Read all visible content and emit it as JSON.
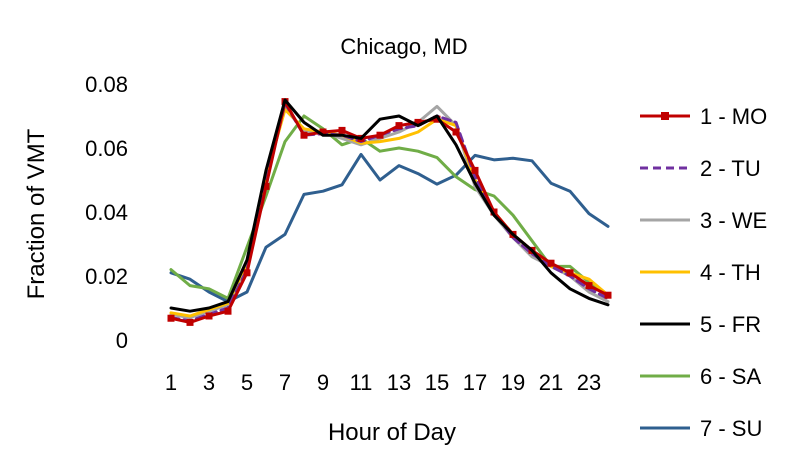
{
  "chart_data": {
    "type": "line",
    "title": "Chicago, MD",
    "xlabel": "Hour of Day",
    "ylabel": "Fraction of VMT",
    "x": [
      1,
      2,
      3,
      4,
      5,
      6,
      7,
      8,
      9,
      10,
      11,
      12,
      13,
      14,
      15,
      16,
      17,
      18,
      19,
      20,
      21,
      22,
      23,
      24
    ],
    "x_tick_labels": [
      "1",
      "3",
      "5",
      "7",
      "9",
      "11",
      "13",
      "15",
      "17",
      "19",
      "21",
      "23"
    ],
    "x_tick_values": [
      1,
      3,
      5,
      7,
      9,
      11,
      13,
      15,
      17,
      19,
      21,
      23
    ],
    "ylim": [
      0,
      0.08
    ],
    "y_ticks": [
      0,
      0.02,
      0.04,
      0.06,
      0.08
    ],
    "y_tick_labels": [
      "0",
      "0.02",
      "0.04",
      "0.06",
      "0.08"
    ],
    "grid": false,
    "legend_position": "right",
    "series": [
      {
        "name": "1 - MO",
        "color": "#c00000",
        "dash": "",
        "marker": "square",
        "values": [
          0.0068,
          0.0055,
          0.0075,
          0.009,
          0.021,
          0.048,
          0.0745,
          0.064,
          0.065,
          0.0655,
          0.063,
          0.064,
          0.067,
          0.068,
          0.069,
          0.065,
          0.053,
          0.04,
          0.033,
          0.028,
          0.024,
          0.021,
          0.017,
          0.014
        ]
      },
      {
        "name": "2 - TU",
        "color": "#7030a0",
        "dash": "8,5",
        "marker": "",
        "values": [
          0.007,
          0.006,
          0.008,
          0.01,
          0.022,
          0.049,
          0.074,
          0.064,
          0.0645,
          0.064,
          0.062,
          0.064,
          0.066,
          0.067,
          0.07,
          0.068,
          0.051,
          0.04,
          0.032,
          0.027,
          0.023,
          0.02,
          0.016,
          0.013
        ]
      },
      {
        "name": "3 - WE",
        "color": "#a5a5a5",
        "dash": "",
        "marker": "",
        "values": [
          0.008,
          0.007,
          0.009,
          0.011,
          0.023,
          0.05,
          0.073,
          0.065,
          0.065,
          0.063,
          0.061,
          0.063,
          0.065,
          0.068,
          0.073,
          0.067,
          0.048,
          0.039,
          0.032,
          0.026,
          0.023,
          0.02,
          0.015,
          0.012
        ]
      },
      {
        "name": "4 - TH",
        "color": "#ffc000",
        "dash": "",
        "marker": "",
        "values": [
          0.0085,
          0.0075,
          0.0095,
          0.0115,
          0.024,
          0.051,
          0.072,
          0.066,
          0.065,
          0.064,
          0.0615,
          0.062,
          0.063,
          0.065,
          0.069,
          0.067,
          0.05,
          0.04,
          0.033,
          0.028,
          0.023,
          0.021,
          0.019,
          0.014
        ]
      },
      {
        "name": "5 - FR",
        "color": "#000000",
        "dash": "",
        "marker": "",
        "values": [
          0.01,
          0.009,
          0.01,
          0.012,
          0.025,
          0.053,
          0.075,
          0.068,
          0.064,
          0.064,
          0.063,
          0.069,
          0.07,
          0.067,
          0.07,
          0.061,
          0.049,
          0.039,
          0.033,
          0.028,
          0.021,
          0.016,
          0.013,
          0.011
        ]
      },
      {
        "name": "6 - SA",
        "color": "#70ad47",
        "dash": "",
        "marker": "",
        "values": [
          0.022,
          0.017,
          0.016,
          0.013,
          0.029,
          0.045,
          0.062,
          0.07,
          0.066,
          0.061,
          0.063,
          0.059,
          0.06,
          0.059,
          0.057,
          0.051,
          0.047,
          0.045,
          0.039,
          0.031,
          0.023,
          0.023,
          0.018,
          0.014
        ]
      },
      {
        "name": "7 - SU",
        "color": "#2f5f8f",
        "dash": "",
        "marker": "",
        "values": [
          0.021,
          0.019,
          0.015,
          0.012,
          0.015,
          0.029,
          0.033,
          0.0455,
          0.0465,
          0.0485,
          0.058,
          0.05,
          0.0545,
          0.052,
          0.0487,
          0.0515,
          0.0577,
          0.0563,
          0.0568,
          0.056,
          0.049,
          0.0465,
          0.0395,
          0.0355
        ]
      }
    ]
  }
}
